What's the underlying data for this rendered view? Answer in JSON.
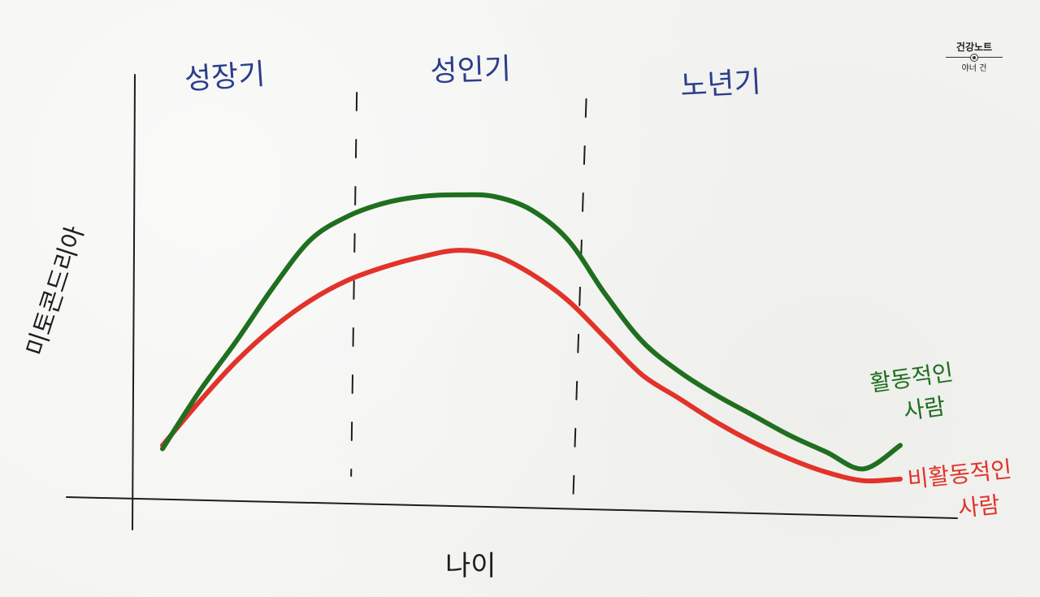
{
  "brand": {
    "title": "건강노트",
    "subtitle": "야너 건"
  },
  "colors": {
    "active": "#1f6f1f",
    "inactive": "#e2332a",
    "phase_labels": "#2c3e8c",
    "ink": "#1e1e1e"
  },
  "chart_data": {
    "type": "line",
    "title": "",
    "xlabel": "나이",
    "ylabel": "미토콘드리아",
    "grid": false,
    "legend": "labels at line ends (right)",
    "phases": [
      {
        "label": "성장기",
        "x_end": 27
      },
      {
        "label": "성인기",
        "x_end": 57
      },
      {
        "label": "노년기",
        "x_end": 100
      }
    ],
    "xlim": [
      0,
      100
    ],
    "ylim": [
      0,
      100
    ],
    "x": [
      0,
      5,
      10,
      15,
      20,
      25,
      30,
      35,
      40,
      45,
      50,
      55,
      60,
      65,
      70,
      75,
      80,
      85,
      90,
      95,
      100
    ],
    "series": [
      {
        "name": "활동적인 사람",
        "color": "#1f6f1f",
        "values": [
          11,
          28,
          43,
          59,
          73,
          80,
          84,
          86,
          86.5,
          86,
          82,
          73,
          57,
          43,
          34,
          27,
          21,
          15,
          10,
          5,
          12
        ]
      },
      {
        "name": "비활동적인 사람",
        "color": "#e2332a",
        "values": [
          12,
          25,
          37,
          47,
          55,
          61,
          65,
          68,
          70,
          68.5,
          63,
          55,
          44,
          33,
          26,
          19,
          13,
          8,
          4,
          1.5,
          2
        ]
      }
    ],
    "series_labels": [
      {
        "line1": "활동적인",
        "line2": "사람"
      },
      {
        "line1": "비활동적인",
        "line2": "사람"
      }
    ]
  }
}
